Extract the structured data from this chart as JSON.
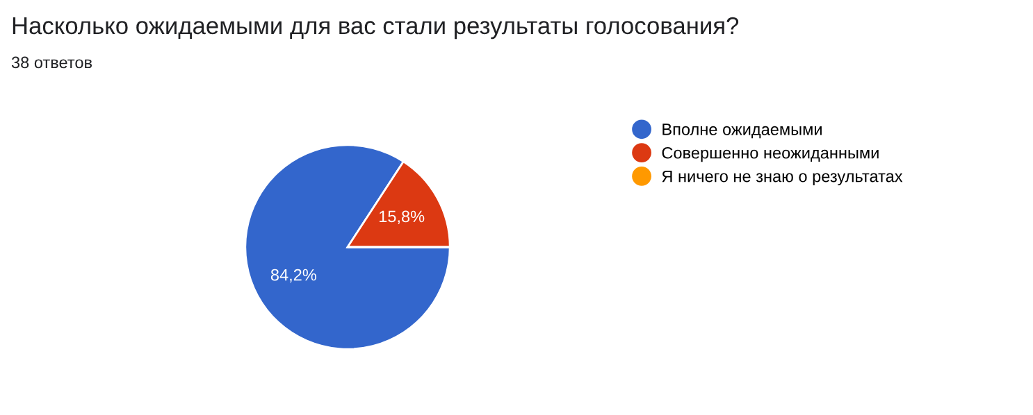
{
  "chart_data": {
    "type": "pie",
    "title": "Насколько ожидаемыми для вас стали результаты голосования?",
    "subtitle": "38 ответов",
    "categories": [
      "Вполне ожидаемыми",
      "Совершенно неожиданными",
      "Я ничего не знаю о результатах"
    ],
    "values": [
      84.2,
      15.8,
      0
    ],
    "colors": [
      "#3366cc",
      "#dc3912",
      "#ff9900"
    ],
    "value_labels": [
      "84,2%",
      "15,8%",
      null
    ],
    "legend": "right"
  }
}
